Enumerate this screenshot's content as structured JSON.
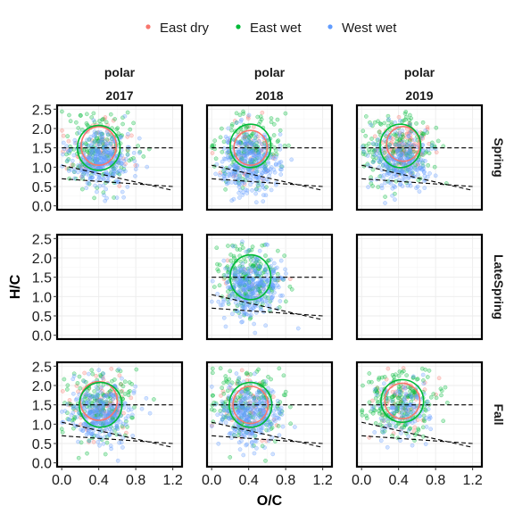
{
  "chart_data": {
    "type": "scatter",
    "legend": {
      "position": "top",
      "entries": [
        {
          "label": "East dry",
          "color": "#F8766D"
        },
        {
          "label": "East wet",
          "color": "#00BA38"
        },
        {
          "label": "West wet",
          "color": "#619CFF"
        }
      ]
    },
    "xlabel": "O/C",
    "ylabel": "H/C",
    "xlim": [
      -0.05,
      1.3
    ],
    "ylim": [
      -0.1,
      2.6
    ],
    "xticks": [
      "0.0",
      "0.4",
      "0.8",
      "1.2"
    ],
    "xtick_values": [
      0.0,
      0.4,
      0.8,
      1.2
    ],
    "yticks": [
      "0.0",
      "0.5",
      "1.0",
      "1.5",
      "2.0",
      "2.5"
    ],
    "ytick_values": [
      0.0,
      0.5,
      1.0,
      1.5,
      2.0,
      2.5
    ],
    "column_strips": [
      {
        "top": "polar",
        "bottom": "2017"
      },
      {
        "top": "polar",
        "bottom": "2018"
      },
      {
        "top": "polar",
        "bottom": "2019"
      }
    ],
    "row_strips": [
      "Spring",
      "LateSpring",
      "Fall"
    ],
    "reference_lines": [
      {
        "x": [
          0.0,
          1.2
        ],
        "y": [
          1.5,
          1.5
        ]
      },
      {
        "x": [
          0.0,
          1.2
        ],
        "y": [
          1.05,
          0.4
        ]
      },
      {
        "x": [
          0.0,
          1.2
        ],
        "y": [
          0.7,
          0.5
        ]
      }
    ],
    "grid": true,
    "panels": [
      {
        "row": 0,
        "col": 0,
        "empty": false,
        "series": [
          {
            "name": "East dry",
            "center": [
              0.38,
              1.45
            ],
            "spread": [
              0.17,
              0.4
            ],
            "n": 70,
            "ellipse": {
              "center": [
                0.4,
                1.55
              ],
              "radii": [
                0.19,
                0.5
              ]
            }
          },
          {
            "name": "East wet",
            "center": [
              0.4,
              1.5
            ],
            "spread": [
              0.2,
              0.48
            ],
            "n": 170,
            "ellipse": {
              "center": [
                0.4,
                1.5
              ],
              "radii": [
                0.23,
                0.58
              ]
            }
          },
          {
            "name": "West wet",
            "center": [
              0.42,
              1.2
            ],
            "spread": [
              0.16,
              0.38
            ],
            "n": 320,
            "ellipse": null
          }
        ]
      },
      {
        "row": 0,
        "col": 1,
        "empty": false,
        "series": [
          {
            "name": "East dry",
            "center": [
              0.4,
              1.45
            ],
            "spread": [
              0.15,
              0.38
            ],
            "n": 60,
            "ellipse": {
              "center": [
                0.42,
                1.5
              ],
              "radii": [
                0.18,
                0.45
              ]
            }
          },
          {
            "name": "East wet",
            "center": [
              0.4,
              1.45
            ],
            "spread": [
              0.19,
              0.45
            ],
            "n": 160,
            "ellipse": {
              "center": [
                0.42,
                1.55
              ],
              "radii": [
                0.22,
                0.56
              ]
            }
          },
          {
            "name": "West wet",
            "center": [
              0.4,
              1.1
            ],
            "spread": [
              0.16,
              0.4
            ],
            "n": 320,
            "ellipse": null
          }
        ]
      },
      {
        "row": 0,
        "col": 2,
        "empty": false,
        "series": [
          {
            "name": "East dry",
            "center": [
              0.43,
              1.55
            ],
            "spread": [
              0.13,
              0.32
            ],
            "n": 120,
            "ellipse": {
              "center": [
                0.45,
                1.6
              ],
              "radii": [
                0.18,
                0.45
              ]
            }
          },
          {
            "name": "East wet",
            "center": [
              0.4,
              1.45
            ],
            "spread": [
              0.2,
              0.48
            ],
            "n": 170,
            "ellipse": {
              "center": [
                0.42,
                1.55
              ],
              "radii": [
                0.22,
                0.56
              ]
            }
          },
          {
            "name": "West wet",
            "center": [
              0.42,
              1.15
            ],
            "spread": [
              0.16,
              0.38
            ],
            "n": 260,
            "ellipse": null
          }
        ]
      },
      {
        "row": 1,
        "col": 0,
        "empty": true,
        "series": []
      },
      {
        "row": 1,
        "col": 1,
        "empty": false,
        "series": [
          {
            "name": "East dry",
            "center": [
              0.4,
              1.4
            ],
            "spread": [
              0.14,
              0.3
            ],
            "n": 20,
            "ellipse": null
          },
          {
            "name": "East wet",
            "center": [
              0.4,
              1.45
            ],
            "spread": [
              0.18,
              0.45
            ],
            "n": 200,
            "ellipse": {
              "center": [
                0.42,
                1.5
              ],
              "radii": [
                0.22,
                0.58
              ]
            }
          },
          {
            "name": "West wet",
            "center": [
              0.42,
              1.3
            ],
            "spread": [
              0.17,
              0.42
            ],
            "n": 330,
            "ellipse": null
          }
        ]
      },
      {
        "row": 1,
        "col": 2,
        "empty": true,
        "series": []
      },
      {
        "row": 2,
        "col": 0,
        "empty": false,
        "series": [
          {
            "name": "East dry",
            "center": [
              0.38,
              1.5
            ],
            "spread": [
              0.16,
              0.4
            ],
            "n": 90,
            "ellipse": {
              "center": [
                0.4,
                1.6
              ],
              "radii": [
                0.2,
                0.5
              ]
            }
          },
          {
            "name": "East wet",
            "center": [
              0.4,
              1.5
            ],
            "spread": [
              0.2,
              0.48
            ],
            "n": 170,
            "ellipse": {
              "center": [
                0.42,
                1.5
              ],
              "radii": [
                0.23,
                0.58
              ]
            }
          },
          {
            "name": "West wet",
            "center": [
              0.42,
              1.25
            ],
            "spread": [
              0.16,
              0.38
            ],
            "n": 300,
            "ellipse": null
          }
        ]
      },
      {
        "row": 2,
        "col": 1,
        "empty": false,
        "series": [
          {
            "name": "East dry",
            "center": [
              0.4,
              1.45
            ],
            "spread": [
              0.15,
              0.38
            ],
            "n": 70,
            "ellipse": {
              "center": [
                0.42,
                1.5
              ],
              "radii": [
                0.19,
                0.48
              ]
            }
          },
          {
            "name": "East wet",
            "center": [
              0.4,
              1.5
            ],
            "spread": [
              0.2,
              0.48
            ],
            "n": 170,
            "ellipse": {
              "center": [
                0.42,
                1.5
              ],
              "radii": [
                0.23,
                0.58
              ]
            }
          },
          {
            "name": "West wet",
            "center": [
              0.42,
              1.25
            ],
            "spread": [
              0.16,
              0.38
            ],
            "n": 320,
            "ellipse": null
          }
        ]
      },
      {
        "row": 2,
        "col": 2,
        "empty": false,
        "series": [
          {
            "name": "East dry",
            "center": [
              0.42,
              1.5
            ],
            "spread": [
              0.16,
              0.4
            ],
            "n": 60,
            "ellipse": {
              "center": [
                0.44,
                1.6
              ],
              "radii": [
                0.19,
                0.46
              ]
            }
          },
          {
            "name": "East wet",
            "center": [
              0.42,
              1.55
            ],
            "spread": [
              0.2,
              0.45
            ],
            "n": 200,
            "ellipse": {
              "center": [
                0.44,
                1.6
              ],
              "radii": [
                0.23,
                0.55
              ]
            }
          },
          {
            "name": "West wet",
            "center": [
              0.45,
              1.4
            ],
            "spread": [
              0.14,
              0.35
            ],
            "n": 120,
            "ellipse": null
          }
        ]
      }
    ]
  }
}
